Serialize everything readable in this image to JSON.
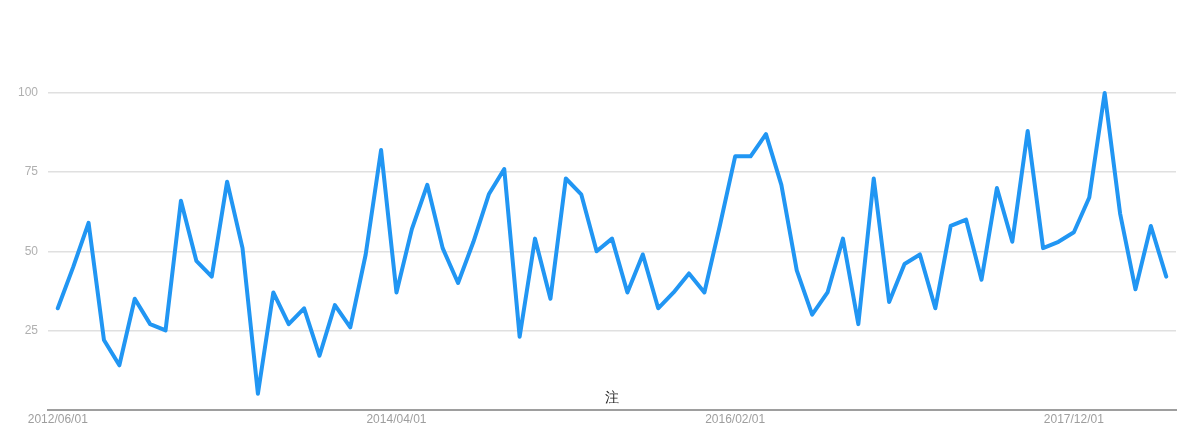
{
  "chart_data": {
    "type": "line",
    "x": [
      "2012-06",
      "2012-07",
      "2012-08",
      "2012-09",
      "2012-10",
      "2012-11",
      "2012-12",
      "2013-01",
      "2013-02",
      "2013-03",
      "2013-04",
      "2013-05",
      "2013-06",
      "2013-07",
      "2013-08",
      "2013-09",
      "2013-10",
      "2013-11",
      "2013-12",
      "2014-01",
      "2014-02",
      "2014-03",
      "2014-04",
      "2014-05",
      "2014-06",
      "2014-07",
      "2014-08",
      "2014-09",
      "2014-10",
      "2014-11",
      "2014-12",
      "2015-01",
      "2015-02",
      "2015-03",
      "2015-04",
      "2015-05",
      "2015-06",
      "2015-07",
      "2015-08",
      "2015-09",
      "2015-10",
      "2015-11",
      "2015-12",
      "2016-01",
      "2016-02",
      "2016-03",
      "2016-04",
      "2016-05",
      "2016-06",
      "2016-07",
      "2016-08",
      "2016-09",
      "2016-10",
      "2016-11",
      "2016-12",
      "2017-01",
      "2017-02",
      "2017-03",
      "2017-04",
      "2017-05",
      "2017-06",
      "2017-07",
      "2017-08",
      "2017-09",
      "2017-10",
      "2017-11",
      "2017-12",
      "2018-01",
      "2018-02",
      "2018-03",
      "2018-04",
      "2018-05",
      "2018-06"
    ],
    "series": [
      {
        "color": "#2196f3",
        "values": [
          32,
          45,
          59,
          22,
          14,
          35,
          27,
          25,
          66,
          47,
          42,
          72,
          51,
          5,
          37,
          27,
          32,
          17,
          33,
          26,
          49,
          82,
          37,
          57,
          71,
          51,
          40,
          53,
          68,
          76,
          23,
          54,
          35,
          73,
          68,
          50,
          54,
          37,
          49,
          32,
          37,
          43,
          37,
          58,
          80,
          80,
          87,
          71,
          44,
          30,
          37,
          54,
          27,
          73,
          34,
          46,
          49,
          32,
          58,
          60,
          41,
          70,
          53,
          88,
          51,
          53,
          56,
          67,
          100,
          62,
          38,
          58,
          42
        ]
      }
    ],
    "xlim": [
      "2012-05-12",
      "2018-06-20"
    ],
    "xticks": [
      {
        "value": "2012-06",
        "label": "2012/06/01"
      },
      {
        "value": "2014-04",
        "label": "2014/04/01"
      },
      {
        "value": "2016-02",
        "label": "2016/02/01"
      },
      {
        "value": "2017-12",
        "label": "2017/12/01"
      }
    ],
    "ylim": [
      0,
      100
    ],
    "yticks": [
      25,
      50,
      75,
      100
    ],
    "grid": "y",
    "legend": false,
    "marker": "none",
    "line_style": "solid",
    "annotations": [
      "注"
    ]
  }
}
